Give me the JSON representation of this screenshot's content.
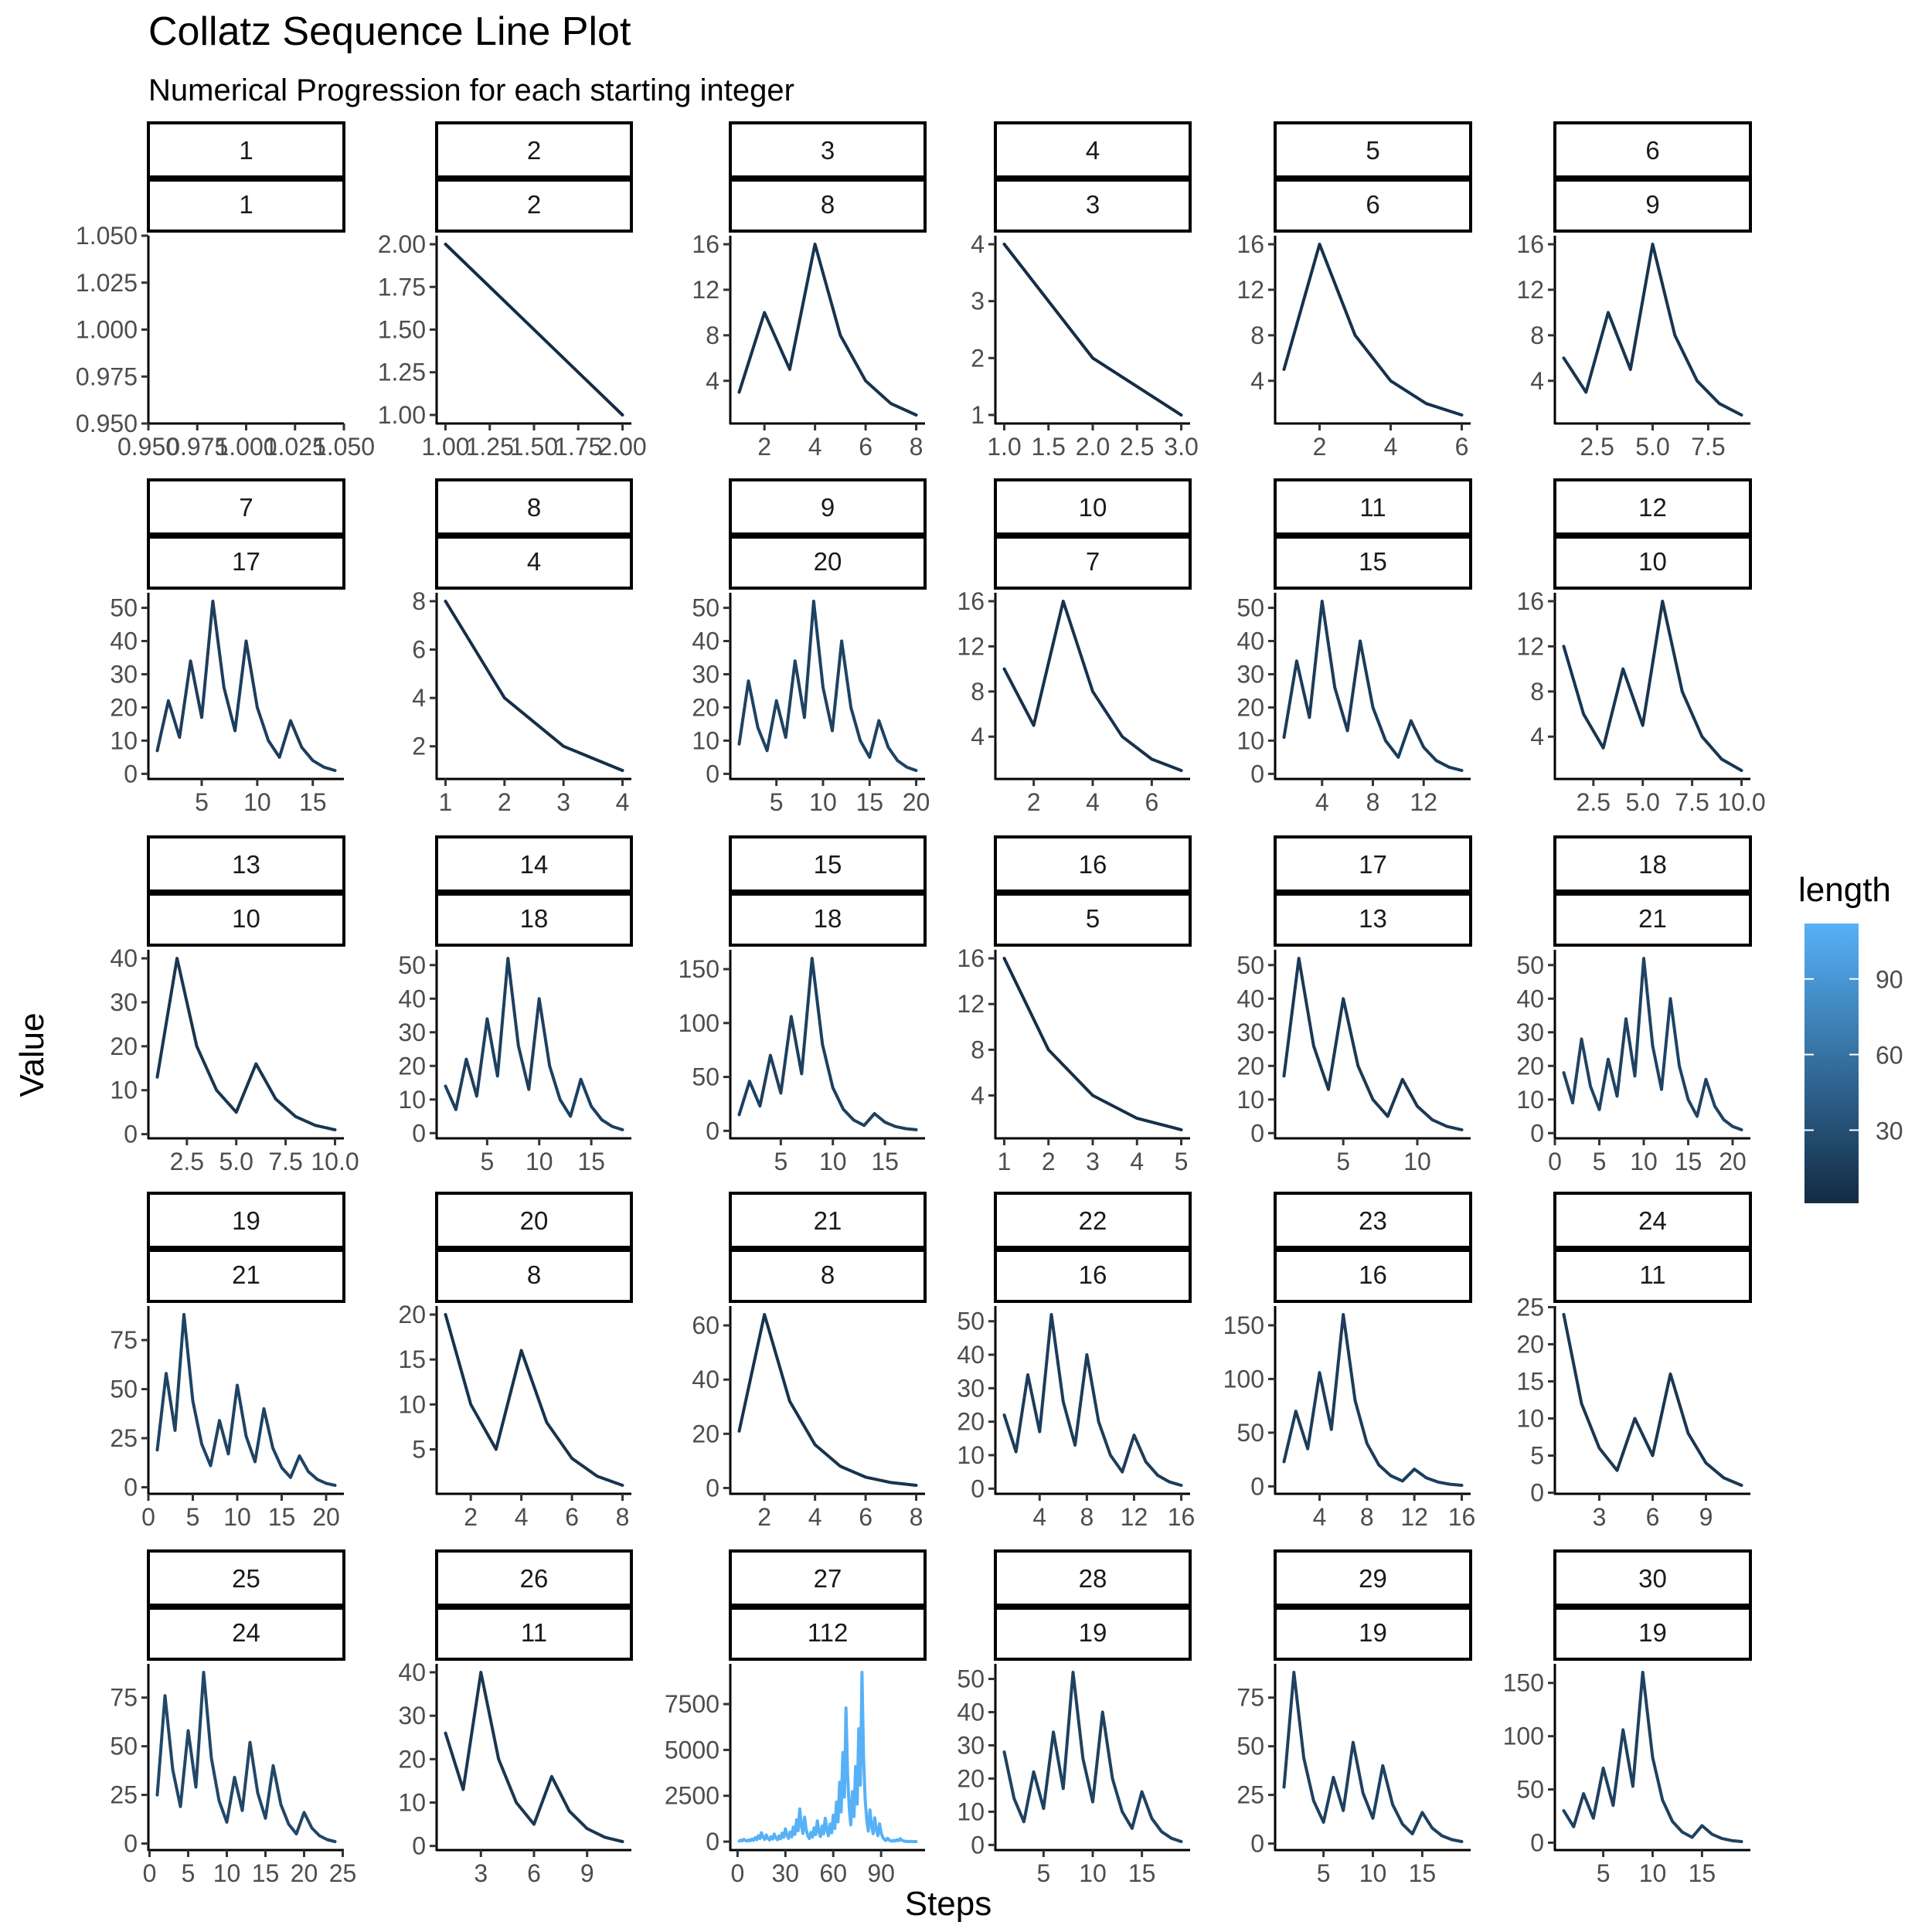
{
  "chart_data": {
    "type": "line",
    "title": "Collatz Sequence Line Plot",
    "subtitle": "Numerical Progression for each starting integer",
    "xlabel": "Steps",
    "ylabel": "Value",
    "facet_by": [
      "start",
      "length"
    ],
    "scales": "free",
    "legend": {
      "title": "length",
      "position": "right",
      "ticks": [
        30,
        60,
        90
      ],
      "range": [
        1,
        112
      ],
      "low_color": "#132B43",
      "high_color": "#56B1F7"
    },
    "panels": [
      {
        "start": "1",
        "length": "1",
        "values": [
          1
        ],
        "xticks": [
          "0.950",
          "0.975",
          "1.000",
          "1.025",
          "1.050"
        ],
        "yticks": [
          "0.950",
          "0.975",
          "1.000",
          "1.025",
          "1.050"
        ]
      },
      {
        "start": "2",
        "length": "2",
        "values": [
          2,
          1
        ],
        "xticks": [
          "1.00",
          "1.25",
          "1.50",
          "1.75",
          "2.00"
        ],
        "yticks": [
          "1.00",
          "1.25",
          "1.50",
          "1.75",
          "2.00"
        ]
      },
      {
        "start": "3",
        "length": "8",
        "values": [
          3,
          10,
          5,
          16,
          8,
          4,
          2,
          1
        ],
        "xticks": [
          "2",
          "4",
          "6",
          "8"
        ],
        "yticks": [
          "4",
          "8",
          "12",
          "16"
        ]
      },
      {
        "start": "4",
        "length": "3",
        "values": [
          4,
          2,
          1
        ],
        "xticks": [
          "1.0",
          "1.5",
          "2.0",
          "2.5",
          "3.0"
        ],
        "yticks": [
          "1",
          "2",
          "3",
          "4"
        ]
      },
      {
        "start": "5",
        "length": "6",
        "values": [
          5,
          16,
          8,
          4,
          2,
          1
        ],
        "xticks": [
          "2",
          "4",
          "6"
        ],
        "yticks": [
          "4",
          "8",
          "12",
          "16"
        ]
      },
      {
        "start": "6",
        "length": "9",
        "values": [
          6,
          3,
          10,
          5,
          16,
          8,
          4,
          2,
          1
        ],
        "xticks": [
          "2.5",
          "5.0",
          "7.5"
        ],
        "yticks": [
          "4",
          "8",
          "12",
          "16"
        ]
      },
      {
        "start": "7",
        "length": "17",
        "values": [
          7,
          22,
          11,
          34,
          17,
          52,
          26,
          13,
          40,
          20,
          10,
          5,
          16,
          8,
          4,
          2,
          1
        ],
        "xticks": [
          "5",
          "10",
          "15"
        ],
        "yticks": [
          "0",
          "10",
          "20",
          "30",
          "40",
          "50"
        ]
      },
      {
        "start": "8",
        "length": "4",
        "values": [
          8,
          4,
          2,
          1
        ],
        "xticks": [
          "1",
          "2",
          "3",
          "4"
        ],
        "yticks": [
          "2",
          "4",
          "6",
          "8"
        ]
      },
      {
        "start": "9",
        "length": "20",
        "values": [
          9,
          28,
          14,
          7,
          22,
          11,
          34,
          17,
          52,
          26,
          13,
          40,
          20,
          10,
          5,
          16,
          8,
          4,
          2,
          1
        ],
        "xticks": [
          "5",
          "10",
          "15",
          "20"
        ],
        "yticks": [
          "0",
          "10",
          "20",
          "30",
          "40",
          "50"
        ]
      },
      {
        "start": "10",
        "length": "7",
        "values": [
          10,
          5,
          16,
          8,
          4,
          2,
          1
        ],
        "xticks": [
          "2",
          "4",
          "6"
        ],
        "yticks": [
          "4",
          "8",
          "12",
          "16"
        ]
      },
      {
        "start": "11",
        "length": "15",
        "values": [
          11,
          34,
          17,
          52,
          26,
          13,
          40,
          20,
          10,
          5,
          16,
          8,
          4,
          2,
          1
        ],
        "xticks": [
          "4",
          "8",
          "12"
        ],
        "yticks": [
          "0",
          "10",
          "20",
          "30",
          "40",
          "50"
        ]
      },
      {
        "start": "12",
        "length": "10",
        "values": [
          12,
          6,
          3,
          10,
          5,
          16,
          8,
          4,
          2,
          1
        ],
        "xticks": [
          "2.5",
          "5.0",
          "7.5",
          "10.0"
        ],
        "yticks": [
          "4",
          "8",
          "12",
          "16"
        ]
      },
      {
        "start": "13",
        "length": "10",
        "values": [
          13,
          40,
          20,
          10,
          5,
          16,
          8,
          4,
          2,
          1
        ],
        "xticks": [
          "2.5",
          "5.0",
          "7.5",
          "10.0"
        ],
        "yticks": [
          "0",
          "10",
          "20",
          "30",
          "40"
        ]
      },
      {
        "start": "14",
        "length": "18",
        "values": [
          14,
          7,
          22,
          11,
          34,
          17,
          52,
          26,
          13,
          40,
          20,
          10,
          5,
          16,
          8,
          4,
          2,
          1
        ],
        "xticks": [
          "5",
          "10",
          "15"
        ],
        "yticks": [
          "0",
          "10",
          "20",
          "30",
          "40",
          "50"
        ]
      },
      {
        "start": "15",
        "length": "18",
        "values": [
          15,
          46,
          23,
          70,
          35,
          106,
          53,
          160,
          80,
          40,
          20,
          10,
          5,
          16,
          8,
          4,
          2,
          1
        ],
        "xticks": [
          "5",
          "10",
          "15"
        ],
        "yticks": [
          "0",
          "50",
          "100",
          "150"
        ]
      },
      {
        "start": "16",
        "length": "5",
        "values": [
          16,
          8,
          4,
          2,
          1
        ],
        "xticks": [
          "1",
          "2",
          "3",
          "4",
          "5"
        ],
        "yticks": [
          "4",
          "8",
          "12",
          "16"
        ]
      },
      {
        "start": "17",
        "length": "13",
        "values": [
          17,
          52,
          26,
          13,
          40,
          20,
          10,
          5,
          16,
          8,
          4,
          2,
          1
        ],
        "xticks": [
          "5",
          "10"
        ],
        "yticks": [
          "0",
          "10",
          "20",
          "30",
          "40",
          "50"
        ]
      },
      {
        "start": "18",
        "length": "21",
        "values": [
          18,
          9,
          28,
          14,
          7,
          22,
          11,
          34,
          17,
          52,
          26,
          13,
          40,
          20,
          10,
          5,
          16,
          8,
          4,
          2,
          1
        ],
        "xticks": [
          "0",
          "5",
          "10",
          "15",
          "20"
        ],
        "yticks": [
          "0",
          "10",
          "20",
          "30",
          "40",
          "50"
        ]
      },
      {
        "start": "19",
        "length": "21",
        "values": [
          19,
          58,
          29,
          88,
          44,
          22,
          11,
          34,
          17,
          52,
          26,
          13,
          40,
          20,
          10,
          5,
          16,
          8,
          4,
          2,
          1
        ],
        "xticks": [
          "0",
          "5",
          "10",
          "15",
          "20"
        ],
        "yticks": [
          "0",
          "25",
          "50",
          "75"
        ]
      },
      {
        "start": "20",
        "length": "8",
        "values": [
          20,
          10,
          5,
          16,
          8,
          4,
          2,
          1
        ],
        "xticks": [
          "2",
          "4",
          "6",
          "8"
        ],
        "yticks": [
          "5",
          "10",
          "15",
          "20"
        ]
      },
      {
        "start": "21",
        "length": "8",
        "values": [
          21,
          64,
          32,
          16,
          8,
          4,
          2,
          1
        ],
        "xticks": [
          "2",
          "4",
          "6",
          "8"
        ],
        "yticks": [
          "0",
          "20",
          "40",
          "60"
        ]
      },
      {
        "start": "22",
        "length": "16",
        "values": [
          22,
          11,
          34,
          17,
          52,
          26,
          13,
          40,
          20,
          10,
          5,
          16,
          8,
          4,
          2,
          1
        ],
        "xticks": [
          "4",
          "8",
          "12",
          "16"
        ],
        "yticks": [
          "0",
          "10",
          "20",
          "30",
          "40",
          "50"
        ]
      },
      {
        "start": "23",
        "length": "16",
        "values": [
          23,
          70,
          35,
          106,
          53,
          160,
          80,
          40,
          20,
          10,
          5,
          16,
          8,
          4,
          2,
          1
        ],
        "xticks": [
          "4",
          "8",
          "12",
          "16"
        ],
        "yticks": [
          "0",
          "50",
          "100",
          "150"
        ]
      },
      {
        "start": "24",
        "length": "11",
        "values": [
          24,
          12,
          6,
          3,
          10,
          5,
          16,
          8,
          4,
          2,
          1
        ],
        "xticks": [
          "3",
          "6",
          "9"
        ],
        "yticks": [
          "0",
          "5",
          "10",
          "15",
          "20",
          "25"
        ]
      },
      {
        "start": "25",
        "length": "24",
        "values": [
          25,
          76,
          38,
          19,
          58,
          29,
          88,
          44,
          22,
          11,
          34,
          17,
          52,
          26,
          13,
          40,
          20,
          10,
          5,
          16,
          8,
          4,
          2,
          1
        ],
        "xticks": [
          "0",
          "5",
          "10",
          "15",
          "20",
          "25"
        ],
        "yticks": [
          "0",
          "25",
          "50",
          "75"
        ]
      },
      {
        "start": "26",
        "length": "11",
        "values": [
          26,
          13,
          40,
          20,
          10,
          5,
          16,
          8,
          4,
          2,
          1
        ],
        "xticks": [
          "3",
          "6",
          "9"
        ],
        "yticks": [
          "0",
          "10",
          "20",
          "30",
          "40"
        ]
      },
      {
        "start": "27",
        "length": "112",
        "values": [
          27,
          82,
          41,
          124,
          62,
          31,
          94,
          47,
          142,
          71,
          214,
          107,
          322,
          161,
          484,
          242,
          121,
          364,
          182,
          91,
          274,
          137,
          412,
          206,
          103,
          310,
          155,
          466,
          233,
          700,
          350,
          175,
          526,
          263,
          790,
          395,
          1186,
          593,
          1780,
          890,
          445,
          1336,
          668,
          334,
          167,
          502,
          251,
          754,
          377,
          1132,
          566,
          283,
          850,
          425,
          1276,
          638,
          319,
          958,
          479,
          1438,
          719,
          2158,
          1079,
          3238,
          1619,
          4858,
          2429,
          7288,
          3644,
          1822,
          911,
          2734,
          1367,
          4102,
          2051,
          6154,
          3077,
          9232,
          4616,
          2308,
          1154,
          577,
          1732,
          866,
          433,
          1300,
          650,
          325,
          976,
          488,
          244,
          122,
          61,
          184,
          92,
          46,
          23,
          70,
          35,
          106,
          53,
          160,
          80,
          40,
          20,
          10,
          5,
          16,
          8,
          4,
          2,
          1
        ],
        "xticks": [
          "0",
          "30",
          "60",
          "90"
        ],
        "yticks": [
          "0",
          "2500",
          "5000",
          "7500"
        ]
      },
      {
        "start": "28",
        "length": "19",
        "values": [
          28,
          14,
          7,
          22,
          11,
          34,
          17,
          52,
          26,
          13,
          40,
          20,
          10,
          5,
          16,
          8,
          4,
          2,
          1
        ],
        "xticks": [
          "5",
          "10",
          "15"
        ],
        "yticks": [
          "0",
          "10",
          "20",
          "30",
          "40",
          "50"
        ]
      },
      {
        "start": "29",
        "length": "19",
        "values": [
          29,
          88,
          44,
          22,
          11,
          34,
          17,
          52,
          26,
          13,
          40,
          20,
          10,
          5,
          16,
          8,
          4,
          2,
          1
        ],
        "xticks": [
          "5",
          "10",
          "15"
        ],
        "yticks": [
          "0",
          "25",
          "50",
          "75"
        ]
      },
      {
        "start": "30",
        "length": "19",
        "values": [
          30,
          15,
          46,
          23,
          70,
          35,
          106,
          53,
          160,
          80,
          40,
          20,
          10,
          5,
          16,
          8,
          4,
          2,
          1
        ],
        "xticks": [
          "5",
          "10",
          "15"
        ],
        "yticks": [
          "0",
          "50",
          "100",
          "150"
        ]
      }
    ]
  }
}
